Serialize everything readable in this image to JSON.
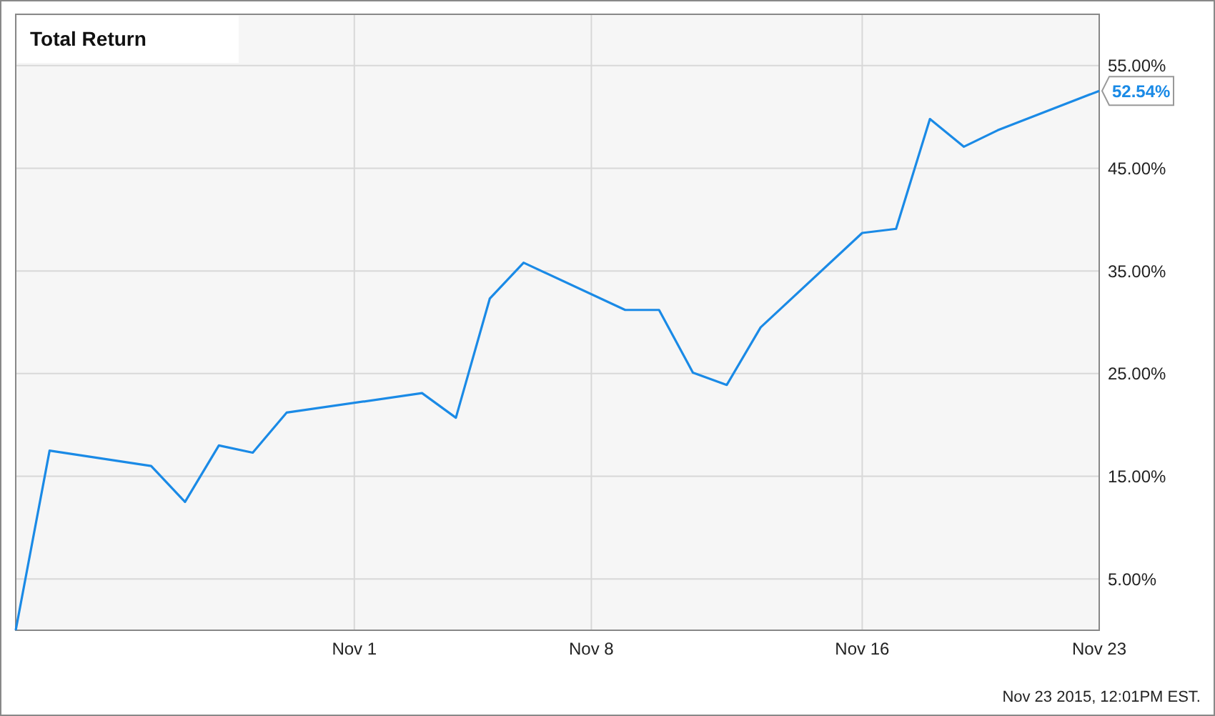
{
  "chart_data": {
    "type": "line",
    "title": "Total Return",
    "x": [
      "2015-10-22",
      "2015-10-23",
      "2015-10-26",
      "2015-10-27",
      "2015-10-28",
      "2015-10-29",
      "2015-10-30",
      "2015-11-03",
      "2015-11-04",
      "2015-11-05",
      "2015-11-06",
      "2015-11-09",
      "2015-11-10",
      "2015-11-11",
      "2015-11-12",
      "2015-11-13",
      "2015-11-16",
      "2015-11-17",
      "2015-11-18",
      "2015-11-19",
      "2015-11-20",
      "2015-11-23"
    ],
    "series": [
      {
        "color": "#1a8ae6",
        "values": [
          0,
          17.5,
          16.0,
          12.5,
          18.0,
          17.3,
          21.2,
          23.1,
          20.7,
          32.3,
          35.8,
          31.2,
          31.2,
          25.1,
          23.9,
          29.5,
          38.7,
          39.1,
          49.8,
          47.1,
          48.7,
          52.54
        ],
        "value_labels": [
          null,
          null,
          null,
          null,
          null,
          null,
          null,
          null,
          null,
          null,
          null,
          null,
          null,
          null,
          null,
          null,
          null,
          null,
          null,
          null,
          null,
          "52.54%"
        ]
      }
    ],
    "xlim": [
      "2015-10-22",
      "2015-11-23"
    ],
    "xticks": [
      {
        "value": "2015-11-01",
        "label": "Nov 1"
      },
      {
        "value": "2015-11-08",
        "label": "Nov 8"
      },
      {
        "value": "2015-11-16",
        "label": "Nov 16"
      },
      {
        "value": "2015-11-23",
        "label": "Nov 23"
      }
    ],
    "ylim": [
      0,
      60
    ],
    "yticks": [
      {
        "value": 5,
        "label": "5.00%"
      },
      {
        "value": 15,
        "label": "15.00%"
      },
      {
        "value": 25,
        "label": "25.00%"
      },
      {
        "value": 35,
        "label": "35.00%"
      },
      {
        "value": 45,
        "label": "45.00%"
      },
      {
        "value": 55,
        "label": "55.00%"
      }
    ],
    "grid": true,
    "marker": "none",
    "line_style": "solid",
    "annotations": [
      "Nov 23 2015, 12:01PM EST."
    ]
  }
}
